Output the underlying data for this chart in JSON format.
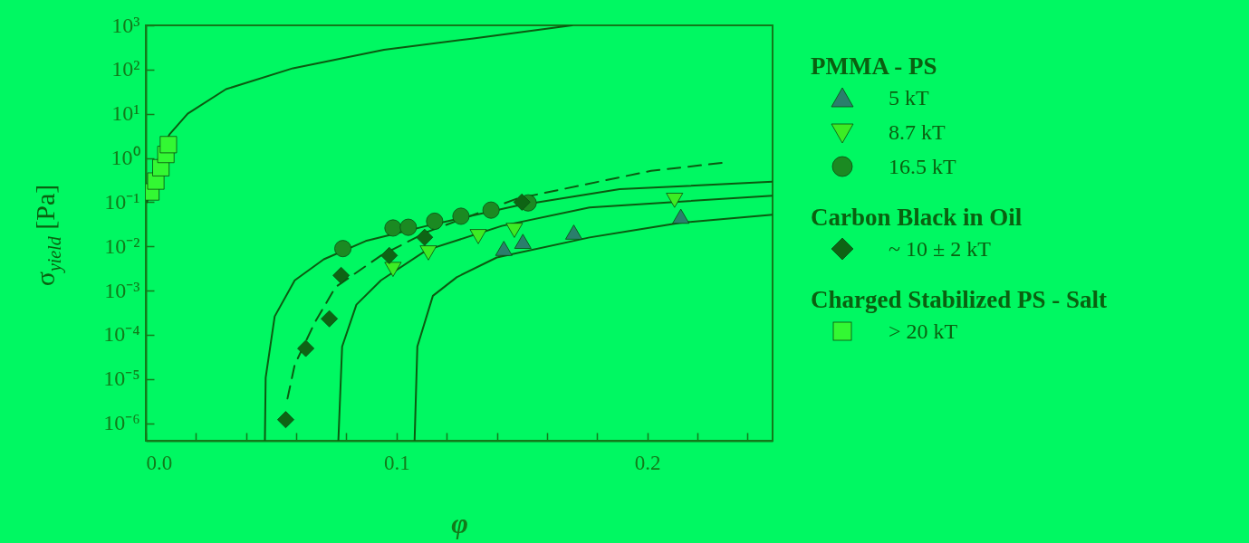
{
  "chart_data": {
    "type": "scatter",
    "xlabel": "φ",
    "ylabel": "σ$_{yield}$  [Pa]",
    "log": "y",
    "grid": false,
    "legend": "right",
    "annotations": [
      "PMMA - PS",
      "Carbon Black in Oil",
      "Charged Stabilized PS - Salt"
    ],
    "xlim": [
      0,
      0.25
    ],
    "xticks": [
      {
        "value": 0,
        "label": "0.0"
      },
      {
        "value": 0.02,
        "label": null
      },
      {
        "value": 0.04,
        "label": null
      },
      {
        "value": 0.06,
        "label": null
      },
      {
        "value": 0.08,
        "label": null
      },
      0.1,
      {
        "value": 0.12,
        "label": null
      },
      {
        "value": 0.14,
        "label": null
      },
      {
        "value": 0.16,
        "label": null
      },
      {
        "value": 0.18,
        "label": null
      },
      0.2,
      {
        "value": 0.22,
        "label": null
      },
      {
        "value": 0.24,
        "label": null
      }
    ],
    "ylim": [
      4e-07,
      1000
    ],
    "yticks": [
      {
        "value": 1e-06,
        "label": "10⁻⁶"
      },
      {
        "value": 1e-05,
        "label": "10⁻⁵"
      },
      {
        "value": 0.0001,
        "label": "10⁻⁴"
      },
      {
        "value": 0.001,
        "label": "10⁻³"
      },
      {
        "value": 0.01,
        "label": "10⁻²"
      },
      {
        "value": 0.1,
        "label": "10⁻¹"
      },
      {
        "value": 1,
        "label": "10⁰"
      },
      {
        "value": 10,
        "label": "10¹"
      },
      {
        "value": 100,
        "label": "10²"
      },
      {
        "value": 1000,
        "label": "10³"
      }
    ],
    "series": [
      {
        "type": "line",
        "color": "#0b5a10",
        "line_style": "solid",
        "x": [
          0.0005,
          0.0033,
          0.0094,
          0.0167,
          0.032,
          0.0587,
          0.095,
          0.13,
          0.17
        ],
        "values": [
          0.1,
          0.58,
          3.4,
          10,
          36,
          107,
          280,
          500,
          1000
        ]
      },
      {
        "type": "line",
        "color": "#0b5a10",
        "line_style": "solid",
        "x": [
          0.0475,
          0.0478,
          0.0514,
          0.0594,
          0.071,
          0.0877,
          0.112,
          0.148,
          0.189,
          0.25
        ],
        "values": [
          4e-07,
          1.07e-05,
          0.00026,
          0.0017,
          0.0051,
          0.0132,
          0.029,
          0.083,
          0.196,
          0.29
        ]
      },
      {
        "type": "line",
        "color": "#0b5a10",
        "line_style": "solid",
        "x": [
          0.0768,
          0.0783,
          0.084,
          0.0938,
          0.112,
          0.142,
          0.177,
          0.25
        ],
        "values": [
          4e-07,
          5.4e-05,
          0.00048,
          0.0017,
          0.0082,
          0.029,
          0.076,
          0.14
        ]
      },
      {
        "type": "line",
        "color": "#0b5a10",
        "line_style": "solid",
        "x": [
          0.1072,
          0.1083,
          0.1145,
          0.124,
          0.14,
          0.177,
          0.213,
          0.25
        ],
        "values": [
          4e-07,
          5.4e-05,
          0.00076,
          0.002,
          0.0056,
          0.0159,
          0.034,
          0.052
        ]
      },
      {
        "type": "line",
        "color": "#0b5a10",
        "line_style": "dashed",
        "x": [
          0.0565,
          0.0594,
          0.0674,
          0.0757,
          0.0938,
          0.112,
          0.148,
          0.2015,
          0.2304
        ],
        "values": [
          3.6e-06,
          2.1e-05,
          0.00019,
          0.0012,
          0.0062,
          0.021,
          0.12,
          0.51,
          0.78
        ]
      },
      {
        "name": "5 kT",
        "marker": "triangle",
        "color": "#2a7f6c",
        "x": [
          0.1428,
          0.1504,
          0.1707,
          0.2134
        ],
        "values": [
          0.009,
          0.013,
          0.021,
          0.048
        ]
      },
      {
        "name": "8.7 kT",
        "marker": "triangle-down",
        "color": "#3cec24",
        "x": [
          0.0986,
          0.1127,
          0.1326,
          0.147,
          0.2109
        ],
        "values": [
          0.003,
          0.0071,
          0.0166,
          0.023,
          0.11
        ]
      },
      {
        "name": "16.5 kT",
        "marker": "circle",
        "color": "#1b8a22",
        "x": [
          0.0786,
          0.0986,
          0.1047,
          0.1152,
          0.1257,
          0.1377,
          0.1525
        ],
        "values": [
          0.0089,
          0.026,
          0.027,
          0.037,
          0.048,
          0.066,
          0.096
        ]
      },
      {
        "name": "~ 10 ± 2 kT",
        "marker": "diamond",
        "color": "#0e6414",
        "x": [
          0.0558,
          0.0638,
          0.0732,
          0.0779,
          0.0971,
          0.1112,
          0.15
        ],
        "values": [
          1.2e-06,
          4.9e-05,
          0.00023,
          0.0022,
          0.0062,
          0.016,
          0.1
        ]
      },
      {
        "name": "> 20 kT",
        "marker": "square",
        "color": "#33f833",
        "x": [
          0.002,
          0.004,
          0.006,
          0.008,
          0.009
        ],
        "values": [
          0.17,
          0.3,
          0.6,
          1.2,
          2
        ]
      }
    ]
  }
}
